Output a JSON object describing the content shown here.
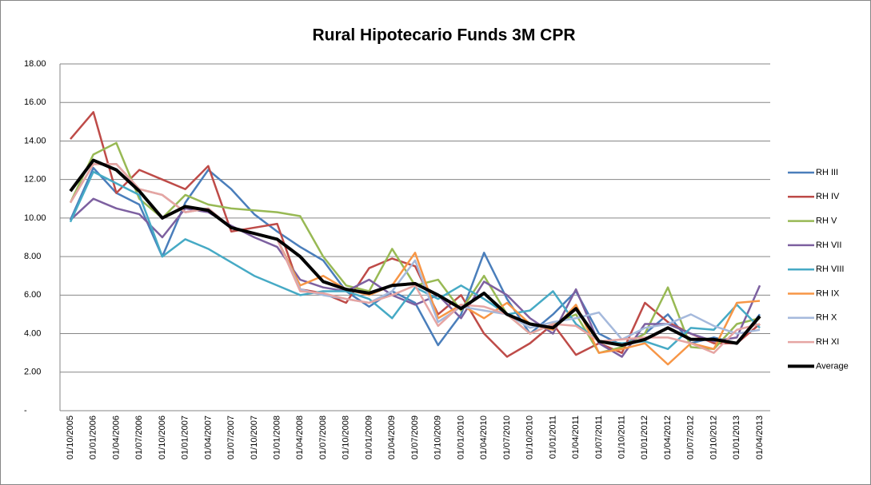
{
  "chart_data": {
    "type": "line",
    "title": "Rural Hipotecario Funds  3M CPR",
    "categories": [
      "01/10/2005",
      "01/01/2006",
      "01/04/2006",
      "01/07/2006",
      "01/10/2006",
      "01/01/2007",
      "01/04/2007",
      "01/07/2007",
      "01/10/2007",
      "01/01/2008",
      "01/04/2008",
      "01/07/2008",
      "01/10/2008",
      "01/01/2009",
      "01/04/2009",
      "01/07/2009",
      "01/10/2009",
      "01/01/2010",
      "01/04/2010",
      "01/07/2010",
      "01/10/2010",
      "01/01/2011",
      "01/04/2011",
      "01/07/2011",
      "01/10/2011",
      "01/01/2012",
      "01/04/2012",
      "01/07/2012",
      "01/10/2012",
      "01/01/2013",
      "01/04/2013"
    ],
    "ylim": [
      0,
      18
    ],
    "yticks": [
      {
        "value": 0,
        "label": "-"
      },
      {
        "value": 2,
        "label": "2.00"
      },
      {
        "value": 4,
        "label": "4.00"
      },
      {
        "value": 6,
        "label": "6.00"
      },
      {
        "value": 8,
        "label": "8.00"
      },
      {
        "value": 10,
        "label": "10.00"
      },
      {
        "value": 12,
        "label": "12.00"
      },
      {
        "value": 14,
        "label": "14.00"
      },
      {
        "value": 16,
        "label": "16.00"
      },
      {
        "value": 18,
        "label": "18.00"
      }
    ],
    "grid": true,
    "legend": "right",
    "series": [
      {
        "name": "RH III",
        "color": "#4a7ebb",
        "values": [
          9.9,
          12.6,
          11.3,
          10.7,
          8.0,
          10.8,
          12.5,
          11.5,
          10.2,
          9.3,
          8.5,
          7.8,
          6.2,
          5.4,
          6.2,
          5.6,
          3.4,
          5.0,
          8.2,
          5.8,
          4.0,
          5.0,
          6.2,
          4.0,
          3.4,
          4.0,
          5.0,
          3.5,
          3.8,
          3.5,
          5.0
        ]
      },
      {
        "name": "RH IV",
        "color": "#be4b48",
        "values": [
          14.1,
          15.5,
          11.3,
          12.5,
          12.0,
          11.5,
          12.7,
          9.3,
          9.5,
          9.7,
          6.3,
          6.1,
          5.6,
          7.4,
          7.9,
          7.5,
          5.0,
          6.0,
          4.0,
          2.8,
          3.5,
          4.5,
          2.9,
          3.5,
          3.0,
          5.6,
          4.6,
          4.0,
          3.5,
          3.5,
          4.5
        ]
      },
      {
        "name": "RH V",
        "color": "#98b954",
        "values": [
          10.8,
          13.3,
          13.9,
          11.0,
          10.0,
          11.2,
          10.7,
          10.5,
          10.4,
          10.3,
          10.1,
          8.0,
          6.5,
          6.2,
          8.4,
          6.5,
          6.8,
          5.2,
          7.0,
          5.0,
          4.0,
          4.5,
          5.0,
          3.0,
          3.3,
          4.0,
          6.4,
          3.3,
          3.2,
          4.5,
          4.8
        ]
      },
      {
        "name": "RH VII",
        "color": "#7d60a0",
        "values": [
          9.9,
          11.0,
          10.5,
          10.2,
          9.0,
          10.5,
          10.3,
          9.6,
          9.0,
          8.5,
          6.8,
          6.4,
          6.2,
          6.8,
          6.0,
          5.5,
          6.0,
          4.8,
          6.7,
          6.0,
          4.8,
          4.0,
          6.3,
          3.5,
          2.8,
          4.5,
          4.5,
          4.0,
          3.6,
          3.8,
          6.5
        ]
      },
      {
        "name": "RH VIII",
        "color": "#46aac5",
        "values": [
          9.8,
          12.4,
          11.8,
          11.2,
          8.0,
          8.9,
          8.4,
          7.7,
          7.0,
          6.5,
          6.0,
          6.2,
          6.2,
          5.8,
          4.8,
          6.4,
          5.8,
          6.5,
          5.8,
          5.0,
          5.2,
          6.2,
          4.5,
          3.6,
          3.5,
          3.6,
          3.2,
          4.3,
          4.2,
          5.5,
          4.3
        ]
      },
      {
        "name": "RH IX",
        "color": "#f79646",
        "values": [
          10.8,
          12.8,
          12.8,
          11.5,
          11.2,
          10.3,
          10.5,
          9.5,
          9.2,
          8.9,
          6.5,
          7.0,
          6.3,
          6.0,
          6.5,
          8.2,
          4.8,
          5.5,
          4.8,
          5.6,
          4.5,
          4.2,
          5.5,
          3.0,
          3.2,
          3.5,
          2.4,
          3.5,
          3.2,
          5.6,
          5.7
        ]
      },
      {
        "name": "RH X",
        "color": "#a5b9dc",
        "values": [
          10.8,
          12.8,
          12.8,
          11.5,
          11.2,
          10.3,
          10.5,
          9.5,
          9.2,
          8.9,
          6.3,
          6.0,
          5.8,
          5.6,
          6.2,
          7.8,
          4.6,
          5.4,
          5.2,
          5.0,
          4.3,
          4.6,
          4.8,
          5.1,
          3.7,
          4.3,
          4.5,
          5.0,
          4.4,
          4.0,
          4.2
        ]
      },
      {
        "name": "RH XI",
        "color": "#e6a5a3",
        "values": [
          10.8,
          12.8,
          12.8,
          11.5,
          11.2,
          10.3,
          10.5,
          9.5,
          9.2,
          8.9,
          6.2,
          6.1,
          5.8,
          5.6,
          6.0,
          6.5,
          4.4,
          5.5,
          5.4,
          5.0,
          4.0,
          4.5,
          4.4,
          3.6,
          3.7,
          3.8,
          3.8,
          3.5,
          3.0,
          4.2,
          4.5
        ]
      },
      {
        "name": "Average",
        "color": "#000000",
        "values": [
          11.4,
          13.0,
          12.5,
          11.4,
          10.0,
          10.6,
          10.4,
          9.5,
          9.2,
          8.9,
          8.0,
          6.7,
          6.3,
          6.1,
          6.5,
          6.6,
          6.0,
          5.3,
          6.1,
          5.0,
          4.5,
          4.3,
          5.3,
          3.6,
          3.4,
          3.7,
          4.3,
          3.7,
          3.7,
          3.5,
          4.9
        ]
      }
    ]
  }
}
